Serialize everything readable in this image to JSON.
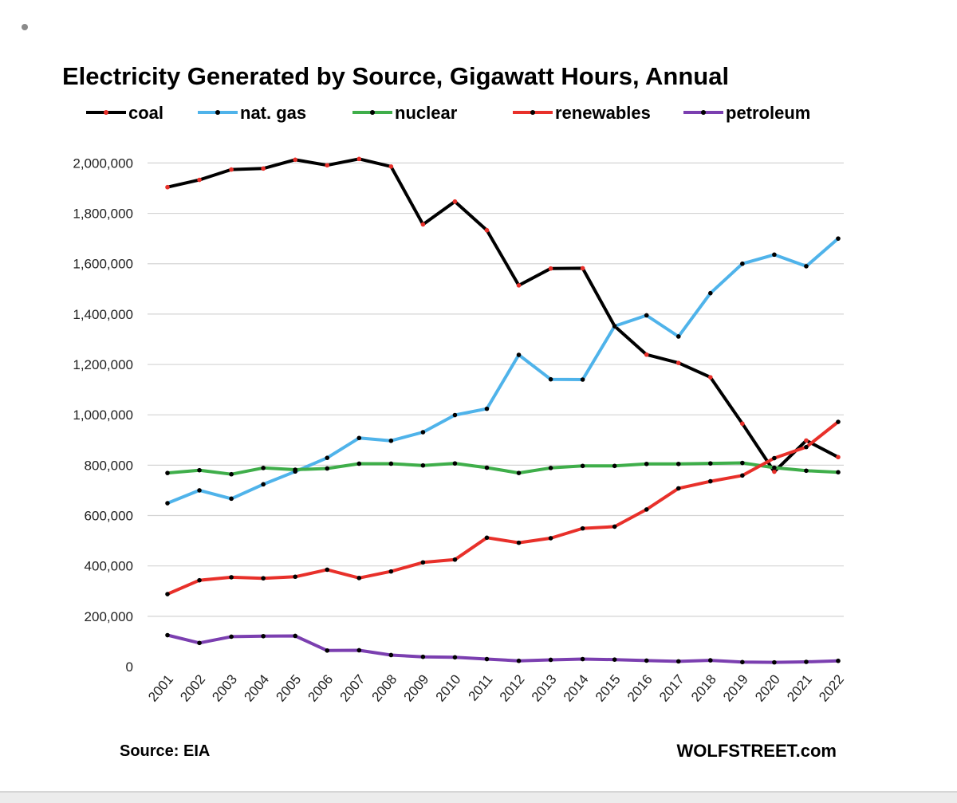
{
  "chart_data": {
    "type": "line",
    "title": "Electricity Generated by Source, Gigawatt Hours, Annual",
    "source_label": "Source: EIA",
    "brand_label": "WOLFSTREET.com",
    "x": [
      "2001",
      "2002",
      "2003",
      "2004",
      "2005",
      "2006",
      "2007",
      "2008",
      "2009",
      "2010",
      "2011",
      "2012",
      "2013",
      "2014",
      "2015",
      "2016",
      "2017",
      "2018",
      "2019",
      "2020",
      "2021",
      "2022"
    ],
    "ylim": [
      0,
      2100000
    ],
    "y_ticks": [
      0,
      200000,
      400000,
      600000,
      800000,
      1000000,
      1200000,
      1400000,
      1600000,
      1800000,
      2000000
    ],
    "y_tick_labels": [
      "0",
      "200,000",
      "400,000",
      "600,000",
      "800,000",
      "1,000,000",
      "1,200,000",
      "1,400,000",
      "1,600,000",
      "1,800,000",
      "2,000,000"
    ],
    "grid": true,
    "legend_position": "top",
    "series": [
      {
        "name": "coal",
        "color": "#000000",
        "marker_color": "#e8302a",
        "values": [
          1904000,
          1933000,
          1974000,
          1978000,
          2013000,
          1991000,
          2016000,
          1986000,
          1756000,
          1847000,
          1733000,
          1514000,
          1581000,
          1582000,
          1352000,
          1239000,
          1206000,
          1149000,
          965000,
          774000,
          898000,
          832000
        ]
      },
      {
        "name": "nat. gas",
        "color": "#4fb3ea",
        "marker_color": "#000000",
        "values": [
          649000,
          700000,
          667000,
          724000,
          775000,
          829000,
          908000,
          897000,
          931000,
          999000,
          1024000,
          1238000,
          1141000,
          1140000,
          1352000,
          1395000,
          1311000,
          1483000,
          1600000,
          1636000,
          1590000,
          1700000
        ]
      },
      {
        "name": "nuclear",
        "color": "#3fae4a",
        "marker_color": "#000000",
        "values": [
          769000,
          780000,
          764000,
          789000,
          782000,
          787000,
          806000,
          806000,
          799000,
          807000,
          790000,
          769000,
          789000,
          797000,
          797000,
          805000,
          805000,
          807000,
          809000,
          790000,
          778000,
          772000
        ]
      },
      {
        "name": "renewables",
        "color": "#e8302a",
        "marker_color": "#000000",
        "values": [
          288000,
          343000,
          355000,
          351000,
          357000,
          385000,
          352000,
          378000,
          414000,
          425000,
          512000,
          492000,
          510000,
          549000,
          556000,
          624000,
          708000,
          736000,
          759000,
          828000,
          872000,
          972000
        ]
      },
      {
        "name": "petroleum",
        "color": "#7b3fb0",
        "marker_color": "#000000",
        "values": [
          125000,
          94000,
          119000,
          121000,
          122000,
          64000,
          65000,
          46000,
          39000,
          37000,
          30000,
          23000,
          27000,
          30000,
          28000,
          24000,
          21000,
          25000,
          18000,
          17000,
          19000,
          23000
        ]
      }
    ]
  }
}
